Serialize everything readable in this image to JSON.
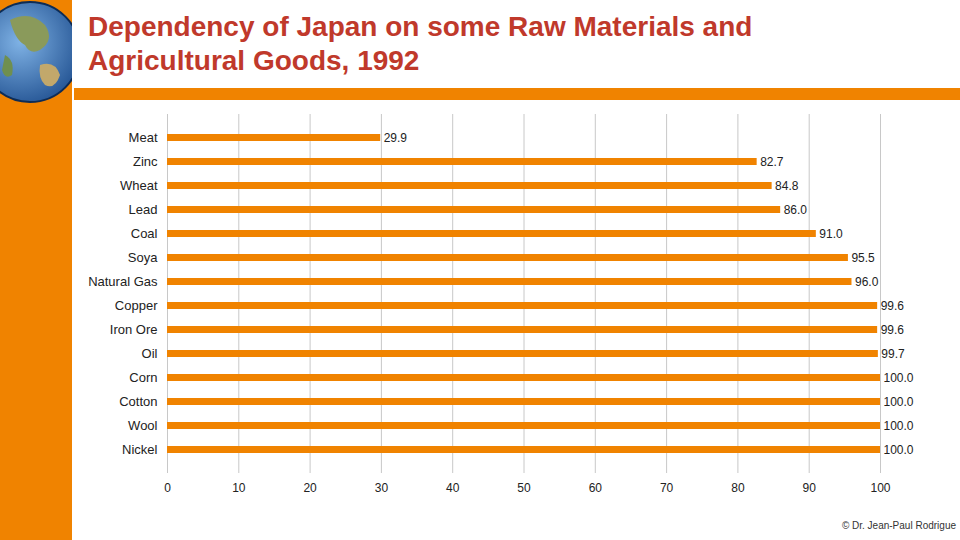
{
  "chart_data": {
    "type": "bar",
    "title": "Dependency of Japan on some Raw Materials and Agricultural Goods, 1992",
    "caption": "© Dr. Jean-Paul Rodrigue",
    "orientation": "horizontal",
    "categories": [
      "Meat",
      "Zinc",
      "Wheat",
      "Lead",
      "Coal",
      "Soya",
      "Natural Gas",
      "Copper",
      "Iron Ore",
      "Oil",
      "Corn",
      "Cotton",
      "Wool",
      "Nickel"
    ],
    "values": [
      29.9,
      82.7,
      84.8,
      86.0,
      91.0,
      95.5,
      96.0,
      99.6,
      99.6,
      99.7,
      100.0,
      100.0,
      100.0,
      100.0
    ],
    "value_labels": [
      "29.9",
      "82.7",
      "84.8",
      "86.0",
      "91.0",
      "95.5",
      "96.0",
      "99.6",
      "99.6",
      "99.7",
      "100.0",
      "100.0",
      "100.0",
      "100.0"
    ],
    "color": "#f08300",
    "xlim": [
      0,
      100
    ],
    "xticks": [
      0,
      10,
      20,
      30,
      40,
      50,
      60,
      70,
      80,
      90,
      100
    ],
    "grid": true,
    "data_labels": true
  }
}
